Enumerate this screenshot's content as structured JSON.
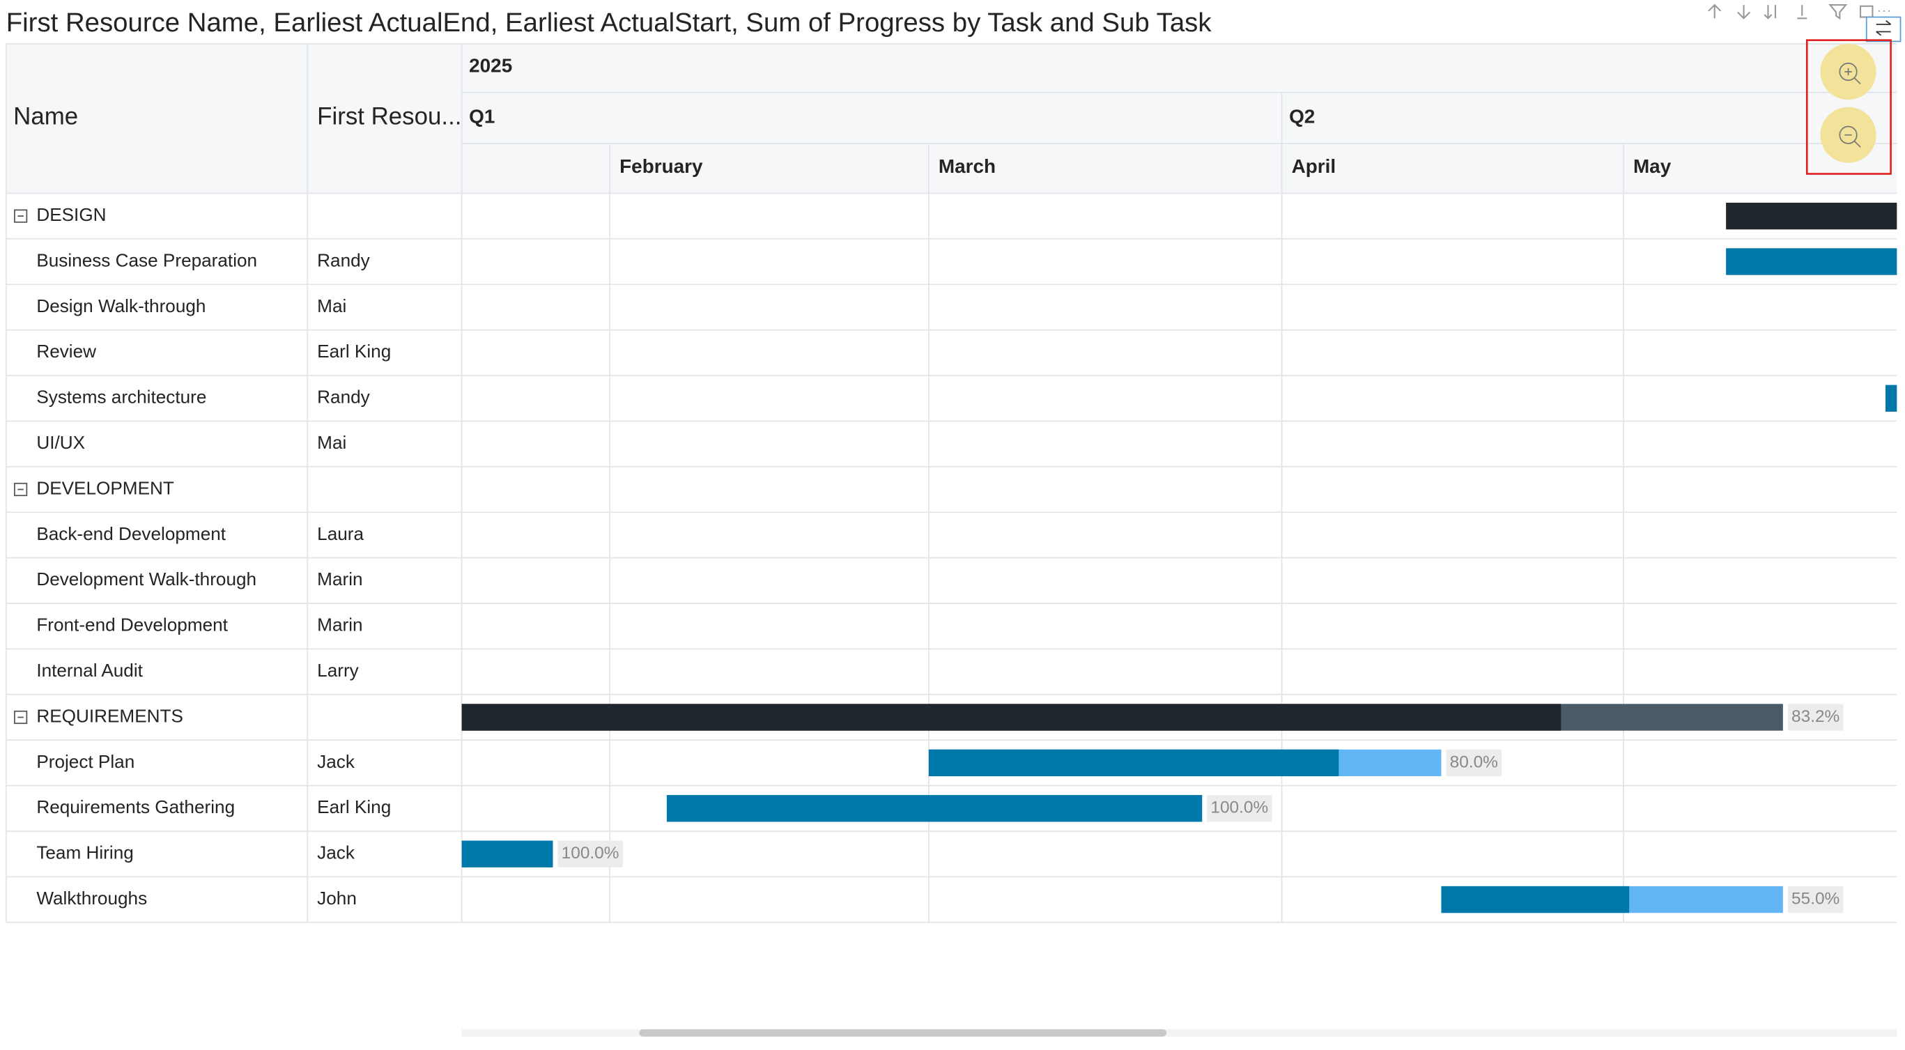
{
  "title": "First Resource Name, Earliest ActualEnd, Earliest ActualStart, Sum of Progress by Task and Sub Task",
  "columns": [
    "Name",
    "First Resou..."
  ],
  "timeline": {
    "range": [
      "2025-01-19",
      "2025-05-25"
    ],
    "years": [
      {
        "start": "2025-01-01",
        "label": "2025"
      }
    ],
    "quarters": [
      {
        "start": "2025-01-01",
        "label": "Q1"
      },
      {
        "start": "2025-04-01",
        "label": "Q2"
      }
    ],
    "months": [
      {
        "start": "2025-02-01",
        "label": "February"
      },
      {
        "start": "2025-03-01",
        "label": "March"
      },
      {
        "start": "2025-04-01",
        "label": "April"
      },
      {
        "start": "2025-05-01",
        "label": "May"
      }
    ]
  },
  "rows": [
    {
      "name": "DESIGN",
      "group": true,
      "start": "2025-05-10",
      "end": "2025-05-25"
    },
    {
      "name": "Business Case Preparation",
      "resource": "Randy",
      "start": "2025-05-10",
      "end": "2025-05-25"
    },
    {
      "name": "Design Walk-through",
      "resource": "Mai"
    },
    {
      "name": "Review",
      "resource": "Earl King"
    },
    {
      "name": "Systems architecture",
      "resource": "Randy",
      "start": "2025-05-24",
      "end": "2025-05-25"
    },
    {
      "name": "UI/UX",
      "resource": "Mai"
    },
    {
      "name": "DEVELOPMENT",
      "group": true
    },
    {
      "name": "Back-end Development",
      "resource": "Laura"
    },
    {
      "name": "Development Walk-through",
      "resource": "Marin"
    },
    {
      "name": "Front-end Development",
      "resource": "Marin"
    },
    {
      "name": "Internal Audit",
      "resource": "Larry"
    },
    {
      "name": "REQUIREMENTS",
      "group": true,
      "start": "2025-01-19",
      "end": "2025-05-15",
      "progress": 83.2,
      "progress_label": "83.2%"
    },
    {
      "name": "Project Plan",
      "resource": "Jack",
      "start": "2025-03-01",
      "end": "2025-04-15",
      "progress": 80,
      "progress_label": "80.0%"
    },
    {
      "name": "Requirements Gathering",
      "resource": "Earl King",
      "start": "2025-02-06",
      "end": "2025-03-25",
      "progress": 100,
      "progress_label": "100.0%"
    },
    {
      "name": "Team Hiring",
      "resource": "Jack",
      "start": "2025-01-19",
      "end": "2025-01-27",
      "progress": 100,
      "progress_label": "100.0%"
    },
    {
      "name": "Walkthroughs",
      "resource": "John",
      "start": "2025-04-15",
      "end": "2025-05-15",
      "progress": 55,
      "progress_label": "55.0%"
    }
  ]
}
